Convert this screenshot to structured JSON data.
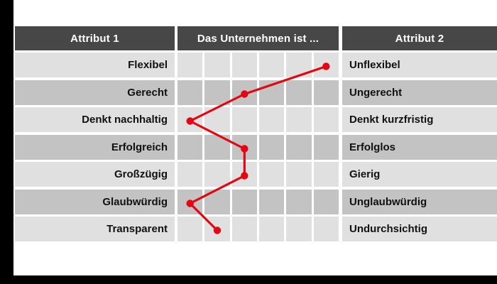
{
  "table": {
    "header": {
      "left": "Attribut 1",
      "middle": "Das Unternehmen ist ...",
      "right": "Attribut 2"
    },
    "rows": [
      {
        "left": "Flexibel",
        "right": "Unflexibel"
      },
      {
        "left": "Gerecht",
        "right": "Ungerecht"
      },
      {
        "left": "Denkt nachhaltig",
        "right": "Denkt kurzfristig"
      },
      {
        "left": "Erfolgreich",
        "right": "Erfolglos"
      },
      {
        "left": "Großzügig",
        "right": "Gierig"
      },
      {
        "left": "Glaubwürdig",
        "right": "Unglaubwürdig"
      },
      {
        "left": "Transparent",
        "right": "Undurchsichtig"
      }
    ]
  },
  "chart_data": {
    "type": "line",
    "profile": "semantic-differential-polarity-profile",
    "title": "Das Unternehmen ist ...",
    "scale": {
      "min": 1,
      "max": 6,
      "columns": 6,
      "left_pole": "Attribut 1",
      "right_pole": "Attribut 2"
    },
    "categories": [
      "Flexibel – Unflexibel",
      "Gerecht – Ungerecht",
      "Denkt nachhaltig – Denkt kurzfristig",
      "Erfolgreich – Erfolglos",
      "Großzügig – Gierig",
      "Glaubwürdig – Unglaubwürdig",
      "Transparent – Undurchsichtig"
    ],
    "values": [
      6,
      3,
      1,
      3,
      3,
      1,
      2
    ],
    "line_color": "#e30613",
    "marker": "circle",
    "grid": "on",
    "legend": "none"
  },
  "colors": {
    "accent_red": "#e30613",
    "header_bg": "#474747",
    "header_text": "#ffffff",
    "row_light": "#e0e0e0",
    "row_dark": "#c3c3c3",
    "frame_black": "#000000",
    "label_text": "#111111",
    "background": "#ffffff"
  }
}
